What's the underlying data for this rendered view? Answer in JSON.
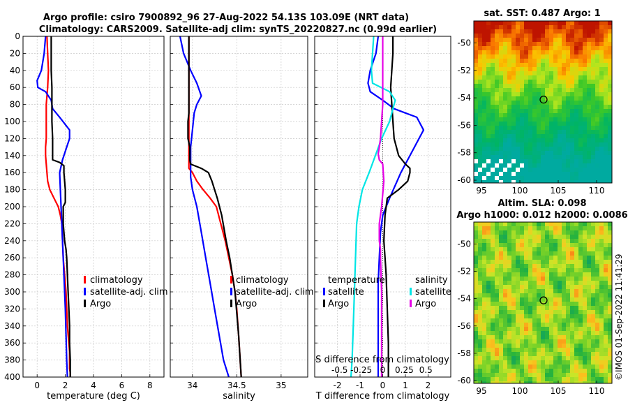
{
  "title_line1": "Argo profile: csiro 7900892_96 27-Aug-2022 54.13S 103.09E (NRT data)",
  "title_line2": "Climatology: CARS2009. Satellite-adj clim: synTS_20220827.nc (0.99d earlier)",
  "depth_ticks": [
    "0",
    "20",
    "40",
    "60",
    "80",
    "100",
    "120",
    "140",
    "160",
    "180",
    "200",
    "220",
    "240",
    "260",
    "280",
    "300",
    "320",
    "340",
    "360",
    "380",
    "400"
  ],
  "colors": {
    "climatology": "#ff0000",
    "satellite": "#0000ff",
    "argo": "#000000",
    "s_satellite": "#00e5e5",
    "s_argo": "#e600e6"
  },
  "chart_data": [
    {
      "type": "line",
      "name": "temperature",
      "xlabel": "temperature (deg C)",
      "xlim": [
        -1,
        9
      ],
      "xticks": [
        0,
        2,
        4,
        6,
        8
      ],
      "xticklabels": [
        "0",
        "2",
        "4",
        "6",
        "8"
      ],
      "ylim": [
        400,
        0
      ],
      "legend": [
        "climatology",
        "satellite-adj. clim",
        "Argo"
      ],
      "series": [
        {
          "name": "climatology",
          "color": "#ff0000",
          "x": [
            0.7,
            0.75,
            0.8,
            0.75,
            0.65,
            0.65,
            0.65,
            0.65,
            0.6,
            0.6,
            0.65,
            0.7,
            0.75,
            0.9,
            1.2,
            1.5,
            1.65,
            1.75,
            1.8,
            1.85,
            1.95,
            2.05,
            2.1,
            2.15,
            2.2,
            2.25,
            2.3,
            2.3,
            2.3,
            2.35,
            2.35
          ],
          "y": [
            0,
            20,
            40,
            60,
            80,
            100,
            110,
            120,
            130,
            140,
            150,
            160,
            170,
            180,
            190,
            200,
            210,
            220,
            240,
            260,
            280,
            300,
            320,
            340,
            350,
            360,
            370,
            380,
            390,
            395,
            400
          ]
        },
        {
          "name": "satellite-adj. clim",
          "color": "#0000ff",
          "x": [
            0.6,
            0.5,
            0.3,
            0.0,
            0.05,
            0.6,
            1.0,
            1.1,
            1.6,
            2.3,
            2.3,
            2.1,
            1.8,
            1.6,
            1.65,
            1.7,
            1.75,
            1.8,
            1.85,
            1.9,
            1.95,
            2.0,
            2.05,
            2.1,
            2.15
          ],
          "y": [
            0,
            20,
            40,
            52,
            60,
            65,
            75,
            85,
            95,
            110,
            120,
            130,
            145,
            160,
            180,
            200,
            220,
            240,
            260,
            280,
            300,
            320,
            350,
            380,
            400
          ]
        },
        {
          "name": "Argo",
          "color": "#000000",
          "x": [
            1.0,
            1.0,
            1.0,
            1.05,
            1.05,
            1.05,
            1.1,
            1.1,
            1.6,
            1.9,
            1.9,
            1.95,
            2.0,
            2.0,
            1.85,
            1.85,
            1.95,
            2.05,
            2.1,
            2.15,
            2.2,
            2.25,
            2.3,
            2.3,
            2.35,
            2.35
          ],
          "y": [
            0,
            20,
            40,
            60,
            80,
            100,
            120,
            145,
            148,
            152,
            160,
            170,
            180,
            195,
            200,
            220,
            240,
            250,
            260,
            280,
            300,
            320,
            340,
            360,
            380,
            400
          ]
        }
      ]
    },
    {
      "type": "line",
      "name": "salinity",
      "xlabel": "salinity",
      "xlim": [
        33.75,
        35.3
      ],
      "xticks": [
        34,
        34.5,
        35
      ],
      "xticklabels": [
        "34",
        "34.5",
        "35"
      ],
      "ylim": [
        400,
        0
      ],
      "legend": [
        "climatology",
        "satellite-adj. clim",
        "Argo"
      ],
      "series": [
        {
          "name": "climatology",
          "color": "#ff0000",
          "x": [
            33.96,
            33.96,
            33.96,
            33.96,
            33.96,
            33.96,
            33.96,
            33.96,
            34.0,
            34.05,
            34.12,
            34.2,
            34.27,
            34.32,
            34.37,
            34.41,
            34.45,
            34.48,
            34.5,
            34.52,
            34.55
          ],
          "y": [
            0,
            40,
            80,
            100,
            120,
            140,
            150,
            155,
            160,
            170,
            180,
            190,
            200,
            220,
            240,
            260,
            280,
            300,
            320,
            350,
            400
          ]
        },
        {
          "name": "satellite-adj. clim",
          "color": "#0000ff",
          "x": [
            33.86,
            33.9,
            33.98,
            34.05,
            34.1,
            34.05,
            34.02,
            34.0,
            33.98,
            33.98,
            33.98,
            34.0,
            34.05,
            34.1,
            34.15,
            34.2,
            34.25,
            34.3,
            34.35,
            34.41
          ],
          "y": [
            0,
            20,
            40,
            55,
            70,
            80,
            90,
            110,
            130,
            150,
            165,
            180,
            200,
            230,
            260,
            290,
            320,
            350,
            380,
            400
          ]
        },
        {
          "name": "Argo",
          "color": "#000000",
          "x": [
            33.96,
            33.96,
            33.96,
            33.96,
            33.95,
            33.95,
            33.97,
            33.97,
            33.97,
            33.98,
            34.1,
            34.18,
            34.22,
            34.25,
            34.28,
            34.33,
            34.38,
            34.42,
            34.45,
            34.48,
            34.52,
            34.55
          ],
          "y": [
            0,
            30,
            60,
            90,
            100,
            120,
            130,
            140,
            145,
            150,
            155,
            160,
            170,
            180,
            190,
            210,
            240,
            260,
            280,
            300,
            350,
            400
          ]
        }
      ]
    },
    {
      "type": "line",
      "name": "difference",
      "xlabel": "T difference from climatology",
      "xlabel_top": "S difference from climatology",
      "xlim": [
        -3,
        3
      ],
      "xticks": [
        -2,
        -1,
        0,
        1,
        2
      ],
      "xticklabels": [
        "-2",
        "-1",
        "0",
        "1",
        "2"
      ],
      "s_ticklabels": [
        "-0.5",
        "-0.25",
        "0",
        "0.25",
        "0.5"
      ],
      "ylim": [
        400,
        0
      ],
      "legend_temperature": [
        "temperature",
        "satellite",
        "Argo"
      ],
      "legend_salinity": [
        "salinity",
        "satellite",
        "Argo"
      ],
      "series": [
        {
          "name": "T satellite",
          "color": "#0000ff",
          "x": [
            -0.2,
            -0.3,
            -0.55,
            -0.65,
            -0.55,
            0.0,
            0.5,
            1.0,
            1.5,
            1.8,
            1.4,
            0.8,
            0.3,
            0.0,
            -0.1,
            -0.15,
            -0.2,
            -0.2,
            -0.2,
            -0.2,
            -0.2
          ],
          "y": [
            0,
            20,
            40,
            55,
            65,
            75,
            85,
            90,
            95,
            110,
            130,
            160,
            190,
            210,
            230,
            260,
            290,
            320,
            350,
            380,
            400
          ]
        },
        {
          "name": "T Argo",
          "color": "#000000",
          "x": [
            0.45,
            0.45,
            0.4,
            0.35,
            0.4,
            0.45,
            0.5,
            0.7,
            1.0,
            1.2,
            1.2,
            1.1,
            0.7,
            0.2,
            0.15,
            0.1,
            0.05,
            0.1,
            0.15,
            0.2,
            0.25,
            0.25
          ],
          "y": [
            0,
            20,
            40,
            60,
            80,
            100,
            120,
            140,
            150,
            155,
            160,
            170,
            180,
            190,
            200,
            210,
            240,
            260,
            280,
            320,
            360,
            400
          ]
        },
        {
          "name": "S satellite",
          "color": "#00e5e5",
          "x": [
            -0.4,
            -0.45,
            -0.5,
            -0.45,
            0.3,
            0.55,
            0.45,
            0.3,
            -0.05,
            -0.6,
            -0.9,
            -1.05,
            -1.15,
            -1.2,
            -1.25,
            -1.3,
            -1.35,
            -1.4
          ],
          "y": [
            0,
            20,
            40,
            55,
            65,
            75,
            85,
            100,
            120,
            160,
            180,
            200,
            220,
            260,
            300,
            340,
            380,
            400
          ]
        },
        {
          "name": "S Argo",
          "color": "#e600e6",
          "x": [
            0.0,
            0.0,
            0.0,
            -0.05,
            -0.1,
            -0.15,
            -0.2,
            -0.15,
            0.0,
            0.05,
            -0.05,
            -0.15,
            -0.15,
            -0.1,
            -0.1,
            -0.05,
            -0.05,
            -0.05
          ],
          "y": [
            0,
            40,
            80,
            100,
            120,
            130,
            138,
            145,
            150,
            170,
            200,
            220,
            240,
            250,
            260,
            300,
            350,
            400
          ]
        }
      ]
    }
  ],
  "sst_map": {
    "title": "sat. SST: 0.487 Argo: 1",
    "xticks": [
      "95",
      "100",
      "105",
      "110"
    ],
    "yticks": [
      "-50",
      "-52",
      "-54",
      "-56",
      "-58",
      "-60"
    ],
    "xlim": [
      94,
      112
    ],
    "ylim": [
      -60.2,
      -48.4
    ],
    "argo_lon": 103.09,
    "argo_lat": -54.13
  },
  "sla_map": {
    "title_line1": "Altim. SLA: 0.098",
    "title_line2": "Argo h1000: 0.012 h2000: 0.0086",
    "xticks": [
      "95",
      "100",
      "105",
      "110"
    ],
    "yticks": [
      "-50",
      "-52",
      "-54",
      "-56",
      "-58",
      "-60"
    ],
    "xlim": [
      94,
      112
    ],
    "ylim": [
      -60.2,
      -48.4
    ],
    "argo_lon": 103.09,
    "argo_lat": -54.13
  },
  "watermark": "©IMOS 01-Sep-2022 11:41:29"
}
